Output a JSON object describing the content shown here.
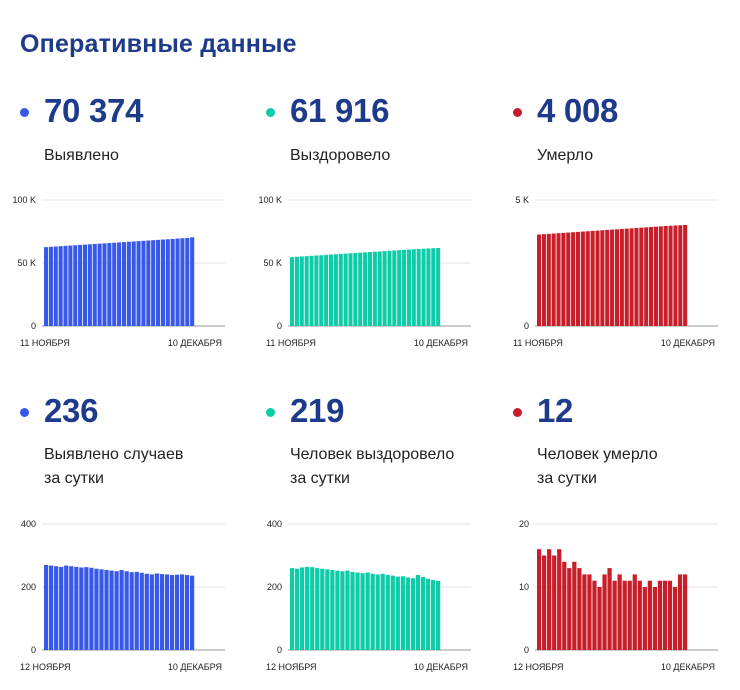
{
  "page": {
    "title": "Оперативные данные"
  },
  "panels": [
    {
      "value": "70 374",
      "label_line1": "Выявлено",
      "label_line2": "",
      "color": "#3858e9"
    },
    {
      "value": "61 916",
      "label_line1": "Выздоровело",
      "label_line2": "",
      "color": "#0fcca8"
    },
    {
      "value": "4 008",
      "label_line1": "Умерло",
      "label_line2": "",
      "color": "#c81e2a"
    },
    {
      "value": "236",
      "label_line1": "Выявлено случаев",
      "label_line2": "за сутки",
      "color": "#3858e9"
    },
    {
      "value": "219",
      "label_line1": "Человек выздоровело",
      "label_line2": "за сутки",
      "color": "#0fcca8"
    },
    {
      "value": "12",
      "label_line1": "Человек умерло",
      "label_line2": "за сутки",
      "color": "#c81e2a"
    }
  ],
  "chart_data": [
    {
      "type": "bar",
      "title": "Выявлено",
      "color": "#3858e9",
      "ylim": [
        0,
        100000
      ],
      "yticks": [
        "0",
        "50 K",
        "100 K"
      ],
      "ytick_values": [
        0,
        50000,
        100000
      ],
      "xlabels": [
        "11 НОЯБРЯ",
        "10 ДЕКАБРЯ"
      ],
      "values": [
        62600,
        62850,
        63100,
        63350,
        63600,
        63850,
        64100,
        64350,
        64600,
        64850,
        65100,
        65350,
        65600,
        65850,
        66100,
        66350,
        66600,
        66850,
        67100,
        67350,
        67600,
        67850,
        68100,
        68350,
        68600,
        68850,
        69100,
        69400,
        69650,
        69900,
        70374
      ]
    },
    {
      "type": "bar",
      "title": "Выздоровело",
      "color": "#0fcca8",
      "ylim": [
        0,
        100000
      ],
      "yticks": [
        "0",
        "50 K",
        "100 K"
      ],
      "ytick_values": [
        0,
        50000,
        100000
      ],
      "xlabels": [
        "11 НОЯБРЯ",
        "10 ДЕКАБРЯ"
      ],
      "values": [
        54700,
        54950,
        55200,
        55450,
        55700,
        55950,
        56200,
        56450,
        56700,
        56950,
        57200,
        57450,
        57700,
        57950,
        58200,
        58450,
        58700,
        58950,
        59200,
        59450,
        59700,
        59950,
        60200,
        60450,
        60700,
        60950,
        61150,
        61350,
        61550,
        61750,
        61916
      ]
    },
    {
      "type": "bar",
      "title": "Умерло",
      "color": "#c81e2a",
      "ylim": [
        0,
        5000
      ],
      "yticks": [
        "0",
        "5 K"
      ],
      "ytick_values": [
        0,
        5000
      ],
      "xlabels": [
        "11 НОЯБРЯ",
        "10 ДЕКАБРЯ"
      ],
      "values": [
        3630,
        3643,
        3656,
        3669,
        3682,
        3695,
        3708,
        3721,
        3734,
        3747,
        3760,
        3773,
        3786,
        3799,
        3812,
        3825,
        3838,
        3851,
        3864,
        3877,
        3890,
        3903,
        3916,
        3929,
        3942,
        3955,
        3968,
        3978,
        3988,
        3998,
        4008
      ]
    },
    {
      "type": "bar",
      "title": "Выявлено случаев за сутки",
      "color": "#3858e9",
      "ylim": [
        0,
        400
      ],
      "yticks": [
        "0",
        "200",
        "400"
      ],
      "ytick_values": [
        0,
        200,
        400
      ],
      "xlabels": [
        "12 НОЯБРЯ",
        "10 ДЕКАБРЯ"
      ],
      "values": [
        270,
        268,
        266,
        264,
        268,
        266,
        264,
        262,
        263,
        261,
        258,
        256,
        254,
        252,
        250,
        254,
        250,
        247,
        248,
        245,
        242,
        240,
        243,
        241,
        240,
        238,
        239,
        240,
        238,
        236
      ]
    },
    {
      "type": "bar",
      "title": "Человек выздоровело за сутки",
      "color": "#0fcca8",
      "ylim": [
        0,
        400
      ],
      "yticks": [
        "0",
        "200",
        "400"
      ],
      "ytick_values": [
        0,
        200,
        400
      ],
      "xlabels": [
        "12 НОЯБРЯ",
        "10 ДЕКАБРЯ"
      ],
      "values": [
        260,
        258,
        262,
        264,
        263,
        260,
        258,
        256,
        254,
        252,
        250,
        252,
        248,
        246,
        244,
        246,
        242,
        240,
        242,
        238,
        236,
        233,
        234,
        230,
        228,
        238,
        232,
        226,
        222,
        219
      ]
    },
    {
      "type": "bar",
      "title": "Человек умерло за сутки",
      "color": "#c81e2a",
      "ylim": [
        0,
        20
      ],
      "yticks": [
        "0",
        "10",
        "20"
      ],
      "ytick_values": [
        0,
        10,
        20
      ],
      "xlabels": [
        "12 НОЯБРЯ",
        "10 ДЕКАБРЯ"
      ],
      "values": [
        16,
        15,
        16,
        15,
        16,
        14,
        13,
        14,
        13,
        12,
        12,
        11,
        10,
        12,
        13,
        11,
        12,
        11,
        11,
        12,
        11,
        10,
        11,
        10,
        11,
        11,
        11,
        10,
        12,
        12
      ]
    }
  ]
}
